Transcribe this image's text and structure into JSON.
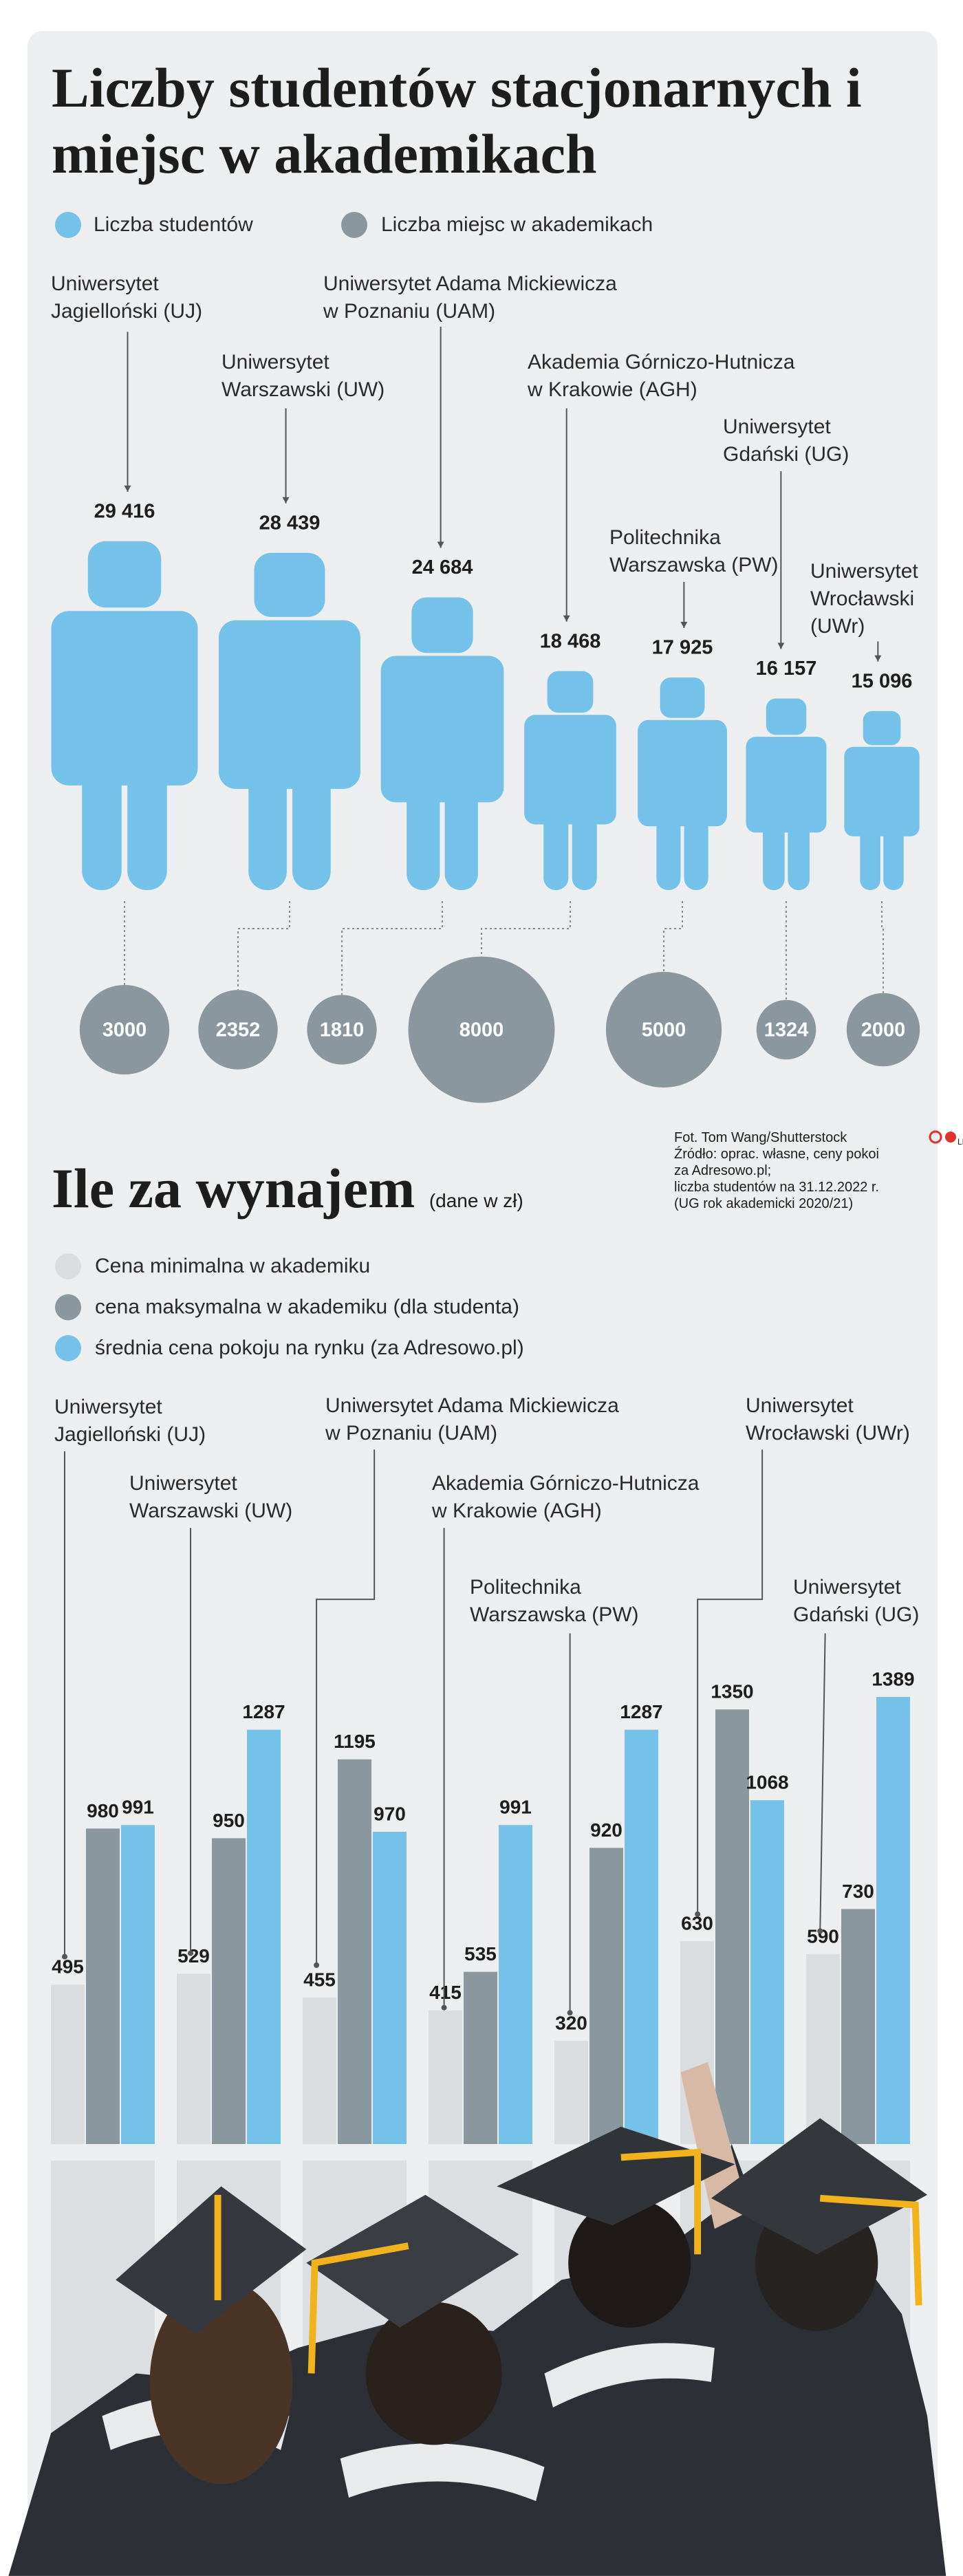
{
  "chart_data": [
    {
      "type": "pictogram",
      "title": "Liczby studentów stacjonarnych i miejsc w akademikach",
      "categories": [
        "Uniwersytet\nJagielloński (UJ)",
        "Uniwersytet\nWarszawski (UW)",
        "Uniwersytet Adama Mickiewicza\nw Poznaniu (UAM)",
        "Akademia Górniczo-Hutnicza\nw Krakowie (AGH)",
        "Politechnika\nWarszawska (PW)",
        "Uniwersytet\nGdański (UG)",
        "Uniwersytet\nWrocławski\n(UWr)"
      ],
      "series": [
        {
          "name": "Liczba studentów",
          "color": "#74c2ea",
          "values": [
            29416,
            28439,
            24684,
            18468,
            17925,
            16157,
            15096
          ],
          "value_labels": [
            "29 416",
            "28 439",
            "24 684",
            "18 468",
            "17 925",
            "16 157",
            "15 096"
          ]
        },
        {
          "name": "Liczba miejsc w akademikach",
          "color": "#8a979f",
          "values": [
            3000,
            2352,
            1810,
            8000,
            5000,
            1324,
            2000
          ]
        }
      ]
    },
    {
      "type": "bar",
      "title": "Ile za wynajem",
      "subtitle": "(dane w zł)",
      "categories": [
        "Uniwersytet\nJagielloński (UJ)",
        "Uniwersytet\nWarszawski (UW)",
        "Uniwersytet Adama Mickiewicza\nw Poznaniu (UAM)",
        "Akademia Górniczo-Hutnicza\nw Krakowie (AGH)",
        "Politechnika\nWarszawska (PW)",
        "Uniwersytet\nWrocławski (UWr)",
        "Uniwersytet\nGdański (UG)"
      ],
      "series": [
        {
          "name": "Cena minimalna w akademiku",
          "color": "#d9dde0",
          "values": [
            495,
            529,
            455,
            415,
            320,
            630,
            590
          ]
        },
        {
          "name": "cena maksymalna w akademiku (dla studenta)",
          "color": "#8a979f",
          "values": [
            980,
            950,
            1195,
            535,
            920,
            1350,
            730
          ]
        },
        {
          "name": "średnia cena pokoju na rynku (za Adresowo.pl)",
          "color": "#74c2ea",
          "values": [
            991,
            1287,
            970,
            991,
            1287,
            1068,
            1389
          ]
        }
      ]
    }
  ],
  "credits": {
    "photo": "Fot. Tom Wang/Shutterstock",
    "logo": "LR",
    "source": "Źródło: oprac. własne, ceny pokoi\nza Adresowo.pl;\nliczba studentów na 31.12.2022 r.\n(UG rok akademicki 2020/21)"
  }
}
